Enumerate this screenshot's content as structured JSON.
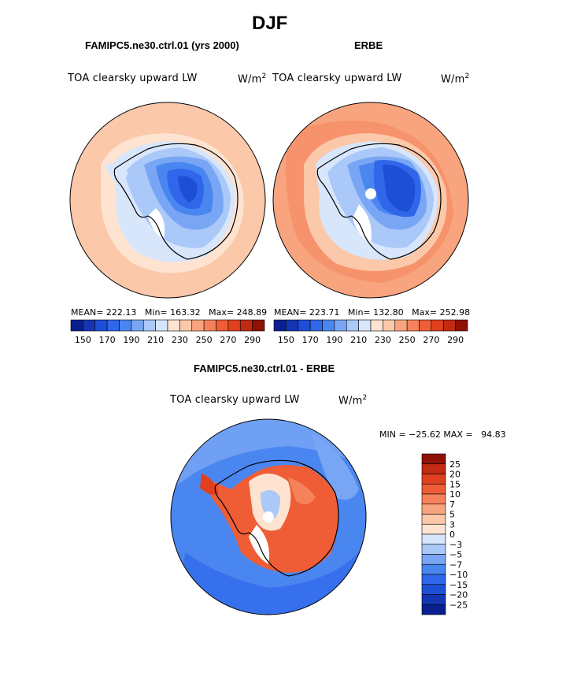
{
  "page": {
    "title": "DJF"
  },
  "panels": [
    {
      "title": "FAMIPC5.ne30.ctrl.01 (yrs 2000)",
      "variable": "TOA clearsky upward LW",
      "units_base": "W/m",
      "units_exp": "2",
      "stats": {
        "mean": "MEAN= 222.13",
        "min": "Min= 163.32",
        "max": "Max= 248.89"
      }
    },
    {
      "title": "ERBE",
      "variable": "TOA clearsky upward LW",
      "units_base": "W/m",
      "units_exp": "2",
      "stats": {
        "mean": "MEAN= 223.71",
        "min": "Min= 132.80",
        "max": "Max= 252.98"
      }
    }
  ],
  "abs_colorbar": {
    "labels": [
      "150",
      "170",
      "190",
      "210",
      "230",
      "250",
      "270",
      "290"
    ],
    "colors": [
      "#0a1f8f",
      "#1436b4",
      "#1d4fd6",
      "#2f66ea",
      "#4a86f0",
      "#79a6f4",
      "#aac8f8",
      "#d8e6fb",
      "#fde3d0",
      "#fbc8aa",
      "#f8a57f",
      "#f5825a",
      "#ee5d36",
      "#e0401e",
      "#c22a12",
      "#8f1205"
    ]
  },
  "diff_panel": {
    "title": "FAMIPC5.ne30.ctrl.01 - ERBE",
    "variable": "TOA clearsky upward LW",
    "units_base": "W/m",
    "units_exp": "2",
    "minmax": "MIN = −25.62 MAX =   94.83"
  },
  "diff_colorbar": {
    "labels": [
      "25",
      "20",
      "15",
      "10",
      "7",
      "5",
      "3",
      "0",
      "−3",
      "−5",
      "−7",
      "−10",
      "−15",
      "−20",
      "−25"
    ],
    "colors": [
      "#8f1205",
      "#c22a12",
      "#e0401e",
      "#ee5d36",
      "#f5825a",
      "#f8a57f",
      "#fbc8aa",
      "#fde3d0",
      "#d8e6fb",
      "#aac8f8",
      "#79a6f4",
      "#4a86f0",
      "#2f66ea",
      "#1d4fd6",
      "#1436b4",
      "#0a1f8f"
    ]
  }
}
